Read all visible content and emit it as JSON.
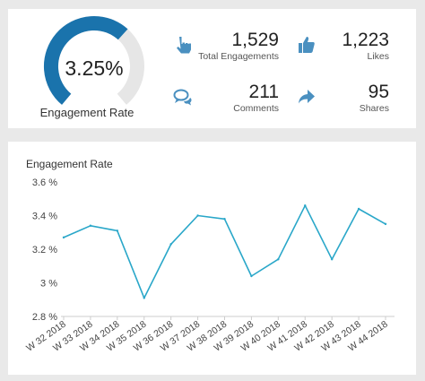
{
  "gauge": {
    "value_text": "3.25%",
    "label": "Engagement Rate",
    "fraction": 0.65,
    "fill_color": "#1a73ac",
    "track_color": "#e6e6e6"
  },
  "metrics": {
    "total_engagements": {
      "value": "1,529",
      "label": "Total Engagements",
      "icon": "pointing-hand-icon"
    },
    "likes": {
      "value": "1,223",
      "label": "Likes",
      "icon": "thumbs-up-icon"
    },
    "comments": {
      "value": "211",
      "label": "Comments",
      "icon": "speech-bubbles-icon"
    },
    "shares": {
      "value": "95",
      "label": "Shares",
      "icon": "share-arrow-icon"
    }
  },
  "icon_color": "#4a90c0",
  "chart_data": {
    "type": "line",
    "title": "Engagement Rate",
    "xlabel": "",
    "ylabel": "",
    "ylim": [
      2.8,
      3.6
    ],
    "y_ticks": [
      "3.6 %",
      "3.4 %",
      "3.2 %",
      "3 %",
      "2.8 %"
    ],
    "y_tick_values": [
      3.6,
      3.4,
      3.2,
      3.0,
      2.8
    ],
    "categories": [
      "W 32 2018",
      "W 33 2018",
      "W 34 2018",
      "W 35 2018",
      "W 36 2018",
      "W 37 2018",
      "W 38 2018",
      "W 39 2018",
      "W 40 2018",
      "W 41 2018",
      "W 42 2018",
      "W 43 2018",
      "W 44 2018"
    ],
    "series": [
      {
        "values": [
          3.27,
          3.34,
          3.31,
          2.91,
          3.23,
          3.4,
          3.38,
          3.04,
          3.14,
          3.46,
          3.14,
          3.44,
          3.35
        ],
        "color": "#2aa7c9"
      }
    ],
    "grid": false
  }
}
